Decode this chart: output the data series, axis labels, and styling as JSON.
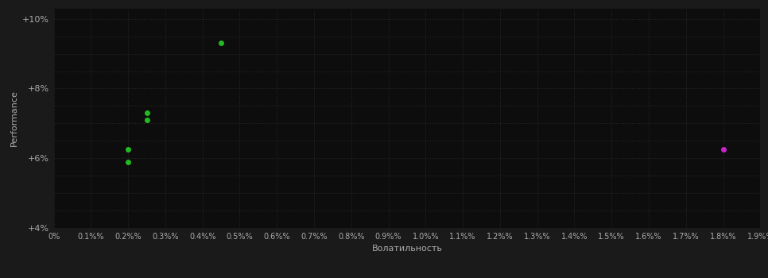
{
  "background_color": "#1a1a1a",
  "plot_bg_color": "#0d0d0d",
  "grid_color": "#2d2d2d",
  "grid_style": ":",
  "xlabel": "Волатильность",
  "ylabel": "Performance",
  "xlabel_color": "#aaaaaa",
  "ylabel_color": "#aaaaaa",
  "tick_color": "#aaaaaa",
  "xlim": [
    0.0,
    0.019
  ],
  "ylim": [
    0.04,
    0.103
  ],
  "xticks": [
    0.0,
    0.001,
    0.002,
    0.003,
    0.004,
    0.005,
    0.006,
    0.007,
    0.008,
    0.009,
    0.01,
    0.011,
    0.012,
    0.013,
    0.014,
    0.015,
    0.016,
    0.017,
    0.018,
    0.019
  ],
  "yticks_major": [
    0.04,
    0.06,
    0.08,
    0.1
  ],
  "yticks_minor": [
    0.04,
    0.045,
    0.05,
    0.055,
    0.06,
    0.065,
    0.07,
    0.075,
    0.08,
    0.085,
    0.09,
    0.095,
    0.1
  ],
  "ytick_labels": [
    "+4%",
    "+6%",
    "+8%",
    "+10%"
  ],
  "green_points": [
    [
      0.002,
      0.0625
    ],
    [
      0.002,
      0.059
    ],
    [
      0.0025,
      0.073
    ],
    [
      0.0025,
      0.071
    ],
    [
      0.0045,
      0.093
    ]
  ],
  "magenta_points": [
    [
      0.018,
      0.0625
    ]
  ],
  "green_color": "#22bb22",
  "magenta_color": "#cc22cc",
  "marker_size": 4
}
